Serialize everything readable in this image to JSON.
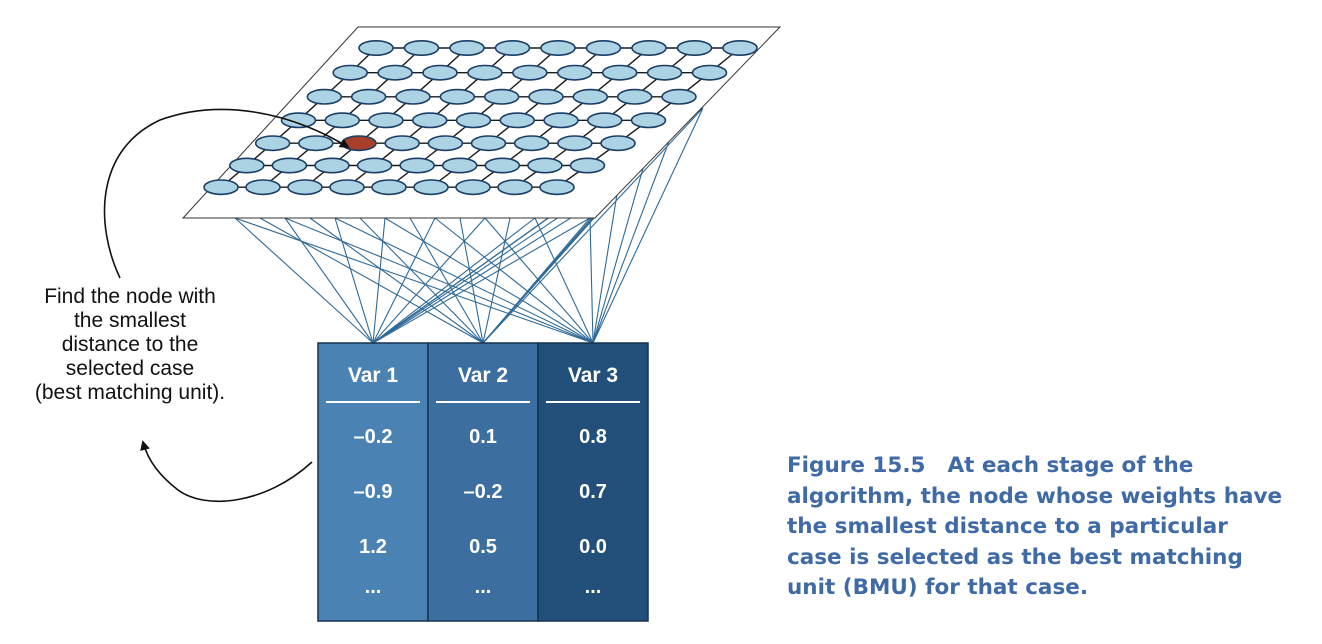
{
  "colors": {
    "node_fill": "#acd3e4",
    "node_stroke": "#1c3e66",
    "bmu_fill": "#a83f2c",
    "grid_line": "#1a1a1a",
    "connection_line": "#2f6a97",
    "var1_fill": "#4b82b4",
    "var2_fill": "#3c6f9f",
    "var3_fill": "#22507a",
    "caption_color": "#3f6aa6",
    "arrow_color": "#111111"
  },
  "grid": {
    "rows": 7,
    "columns": 9,
    "bmu": {
      "row": 4,
      "column": 2
    }
  },
  "annotation": {
    "lines": [
      "Find the node with",
      "the smallest",
      "distance to the",
      "selected case",
      "(best matching unit)."
    ]
  },
  "table": {
    "columns": [
      {
        "header": "Var 1",
        "values": [
          "–0.2",
          "–0.9",
          "1.2",
          "..."
        ]
      },
      {
        "header": "Var 2",
        "values": [
          "0.1",
          "–0.2",
          "0.5",
          "..."
        ]
      },
      {
        "header": "Var 3",
        "values": [
          "0.8",
          "0.7",
          "0.0",
          "..."
        ]
      }
    ]
  },
  "caption": {
    "figure_label": "Figure 15.5",
    "lines": [
      "At each stage of the",
      "algorithm, the node whose weights have",
      "the smallest distance to a particular",
      "case is selected as the best matching",
      "unit (BMU) for that case."
    ]
  }
}
